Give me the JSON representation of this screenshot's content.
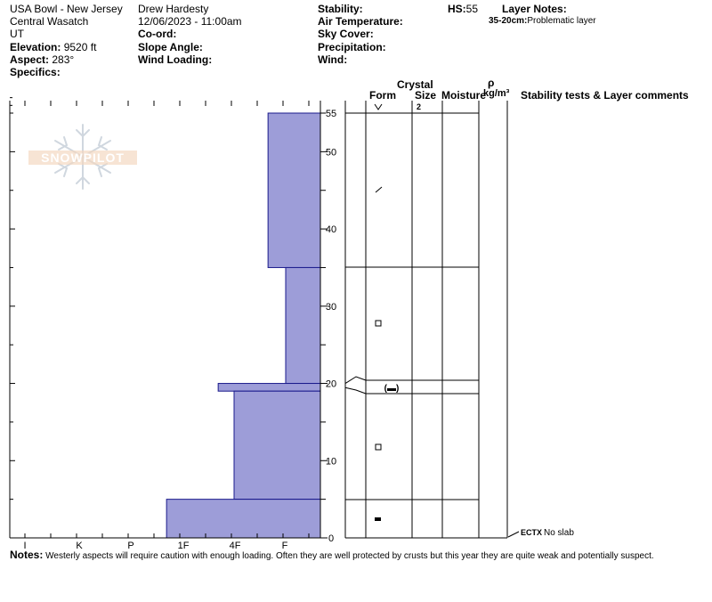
{
  "header": {
    "location": "USA Bowl - New Jersey",
    "range": "Central Wasatch",
    "state": "UT",
    "elevation_label": "Elevation:",
    "elevation_value": "9520 ft",
    "aspect_label": "Aspect:",
    "aspect_value": "283°",
    "specifics_label": "Specifics:",
    "observer": "Drew Hardesty",
    "datetime": "12/06/2023 - 11:00am",
    "coord_label": "Co-ord:",
    "slope_label": "Slope Angle:",
    "windload_label": "Wind Loading:",
    "stability_label": "Stability:",
    "airtemp_label": "Air Temperature:",
    "skycover_label": "Sky Cover:",
    "precip_label": "Precipitation:",
    "wind_label": "Wind:",
    "hs_label": "HS:",
    "hs_value": "55",
    "layer_notes_label": "Layer Notes:",
    "layer_note_range": "35-20cm:",
    "layer_note_text": "Problematic layer"
  },
  "logo_text": "SNOWPILOT",
  "columns": {
    "crystal": "Crystal",
    "form": "Form",
    "size": "Size",
    "moisture": "Moisture",
    "rho": "ρ",
    "density": "kg/m³",
    "stability": "Stability tests & Layer comments"
  },
  "notes": {
    "label": "Notes:",
    "text": "Westerly aspects will require caution with enough loading.  Often they are well protected by crusts but this year they are quite weak and potentially suspect."
  },
  "chart_data": {
    "type": "bar",
    "orientation": "horizontal-step",
    "x_categories": [
      "I",
      "K",
      "P",
      "1F",
      "4F",
      "F"
    ],
    "y_axis": {
      "label": "",
      "ylim": [
        0,
        55
      ],
      "ticks": [
        0,
        10,
        20,
        30,
        40,
        50,
        55
      ]
    },
    "layers": [
      {
        "top": 55,
        "bottom": 35,
        "hardness": "F+"
      },
      {
        "top": 35,
        "bottom": 20,
        "hardness": "F-"
      },
      {
        "top": 20,
        "bottom": 19,
        "hardness": "4F+"
      },
      {
        "top": 19,
        "bottom": 5,
        "hardness": "4F"
      },
      {
        "top": 5,
        "bottom": 0,
        "hardness": "1F+"
      }
    ],
    "grain_table_boundaries": [
      55,
      35,
      20,
      19,
      5,
      0
    ],
    "grain_forms": [
      {
        "height": 55,
        "form": "surface-hoar",
        "size": "2"
      },
      {
        "height": 45,
        "form": "decomposing-fragments",
        "size": ""
      },
      {
        "height": 27.5,
        "form": "faceted",
        "size": ""
      },
      {
        "height": 19.5,
        "form": "melt-freeze-crust-bracketed",
        "size": ""
      },
      {
        "height": 12,
        "form": "faceted",
        "size": ""
      },
      {
        "height": 2.5,
        "form": "melt-freeze-crust",
        "size": ""
      }
    ],
    "stability_tests": [
      {
        "height": 0,
        "code": "ECTX",
        "comment": "No slab"
      }
    ]
  }
}
